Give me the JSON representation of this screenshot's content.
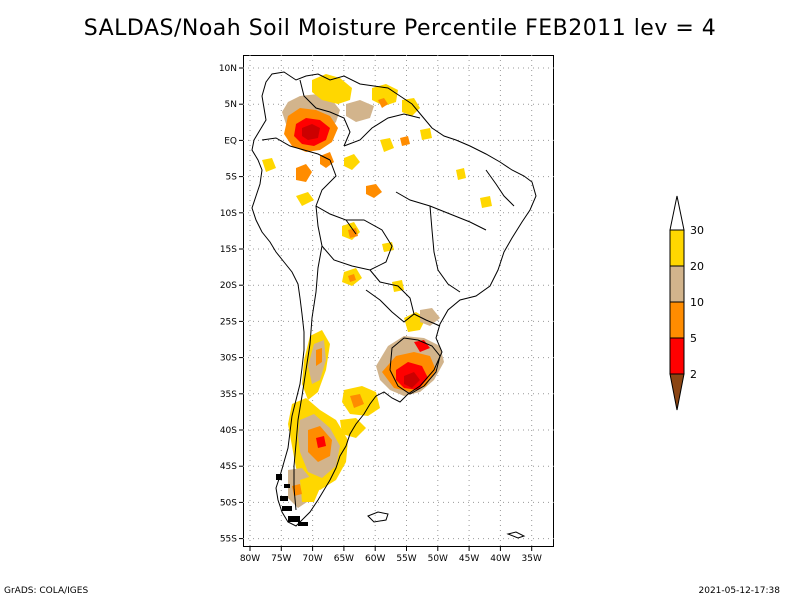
{
  "title": "SALDAS/Noah Soil Moisture Percentile FEB2011 lev = 4",
  "map": {
    "lat_labels": [
      "10N",
      "5N",
      "EQ",
      "5S",
      "10S",
      "15S",
      "20S",
      "25S",
      "30S",
      "35S",
      "40S",
      "45S",
      "50S",
      "55S"
    ],
    "lon_labels": [
      "80W",
      "75W",
      "70W",
      "65W",
      "60W",
      "55W",
      "50W",
      "45W",
      "40W",
      "35W"
    ],
    "lat_range": [
      -56,
      11
    ],
    "lon_range": [
      -81,
      -34
    ]
  },
  "legend": {
    "labels": [
      "2",
      "5",
      "10",
      "20",
      "30"
    ],
    "colors": [
      "#8B4513",
      "#FF0000",
      "#FF8C00",
      "#D2B48C",
      "#FFD700",
      "#FFFFFF"
    ]
  },
  "colors": {
    "dark_red": "#CC0000",
    "red": "#FF0000",
    "orange": "#FF8C00",
    "tan": "#D2B48C",
    "yellow": "#FFD700",
    "brown": "#8B4513"
  },
  "footer": {
    "left": "GrADS: COLA/IGES",
    "right": "2021-05-12-17:38"
  }
}
